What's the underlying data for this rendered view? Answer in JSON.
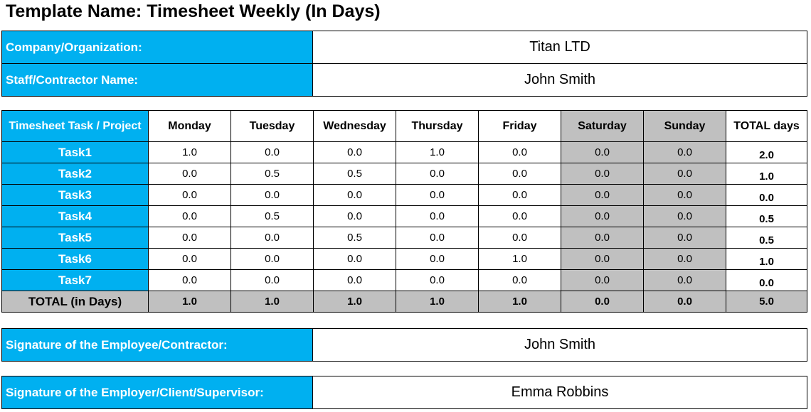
{
  "title": "Template Name: Timesheet Weekly (In Days)",
  "info": {
    "company_label": "Company/Organization:",
    "company_value": "Titan LTD",
    "staff_label": "Staff/Contractor Name:",
    "staff_value": "John Smith"
  },
  "timesheet": {
    "headers": {
      "task": "Timesheet Task / Project",
      "days": [
        "Monday",
        "Tuesday",
        "Wednesday",
        "Thursday",
        "Friday",
        "Saturday",
        "Sunday"
      ],
      "total": "TOTAL days"
    },
    "rows": [
      {
        "name": "Task1",
        "values": [
          "1.0",
          "0.0",
          "0.0",
          "1.0",
          "0.0",
          "0.0",
          "0.0"
        ],
        "total": "2.0"
      },
      {
        "name": "Task2",
        "values": [
          "0.0",
          "0.5",
          "0.5",
          "0.0",
          "0.0",
          "0.0",
          "0.0"
        ],
        "total": "1.0"
      },
      {
        "name": "Task3",
        "values": [
          "0.0",
          "0.0",
          "0.0",
          "0.0",
          "0.0",
          "0.0",
          "0.0"
        ],
        "total": "0.0"
      },
      {
        "name": "Task4",
        "values": [
          "0.0",
          "0.5",
          "0.0",
          "0.0",
          "0.0",
          "0.0",
          "0.0"
        ],
        "total": "0.5"
      },
      {
        "name": "Task5",
        "values": [
          "0.0",
          "0.0",
          "0.5",
          "0.0",
          "0.0",
          "0.0",
          "0.0"
        ],
        "total": "0.5"
      },
      {
        "name": "Task6",
        "values": [
          "0.0",
          "0.0",
          "0.0",
          "0.0",
          "1.0",
          "0.0",
          "0.0"
        ],
        "total": "1.0"
      },
      {
        "name": "Task7",
        "values": [
          "0.0",
          "0.0",
          "0.0",
          "0.0",
          "0.0",
          "0.0",
          "0.0"
        ],
        "total": "0.0"
      }
    ],
    "totals": {
      "label": "TOTAL (in Days)",
      "values": [
        "1.0",
        "1.0",
        "1.0",
        "1.0",
        "1.0",
        "0.0",
        "0.0"
      ],
      "grand_total": "5.0"
    }
  },
  "signatures": {
    "employee_label": "Signature of the Employee/Contractor:",
    "employee_value": "John Smith",
    "employer_label": "Signature of the Employer/Client/Supervisor:",
    "employer_value": "Emma Robbins"
  },
  "colors": {
    "label_blue": "#00b0f0",
    "weekend_gray": "#c0c0c0"
  }
}
